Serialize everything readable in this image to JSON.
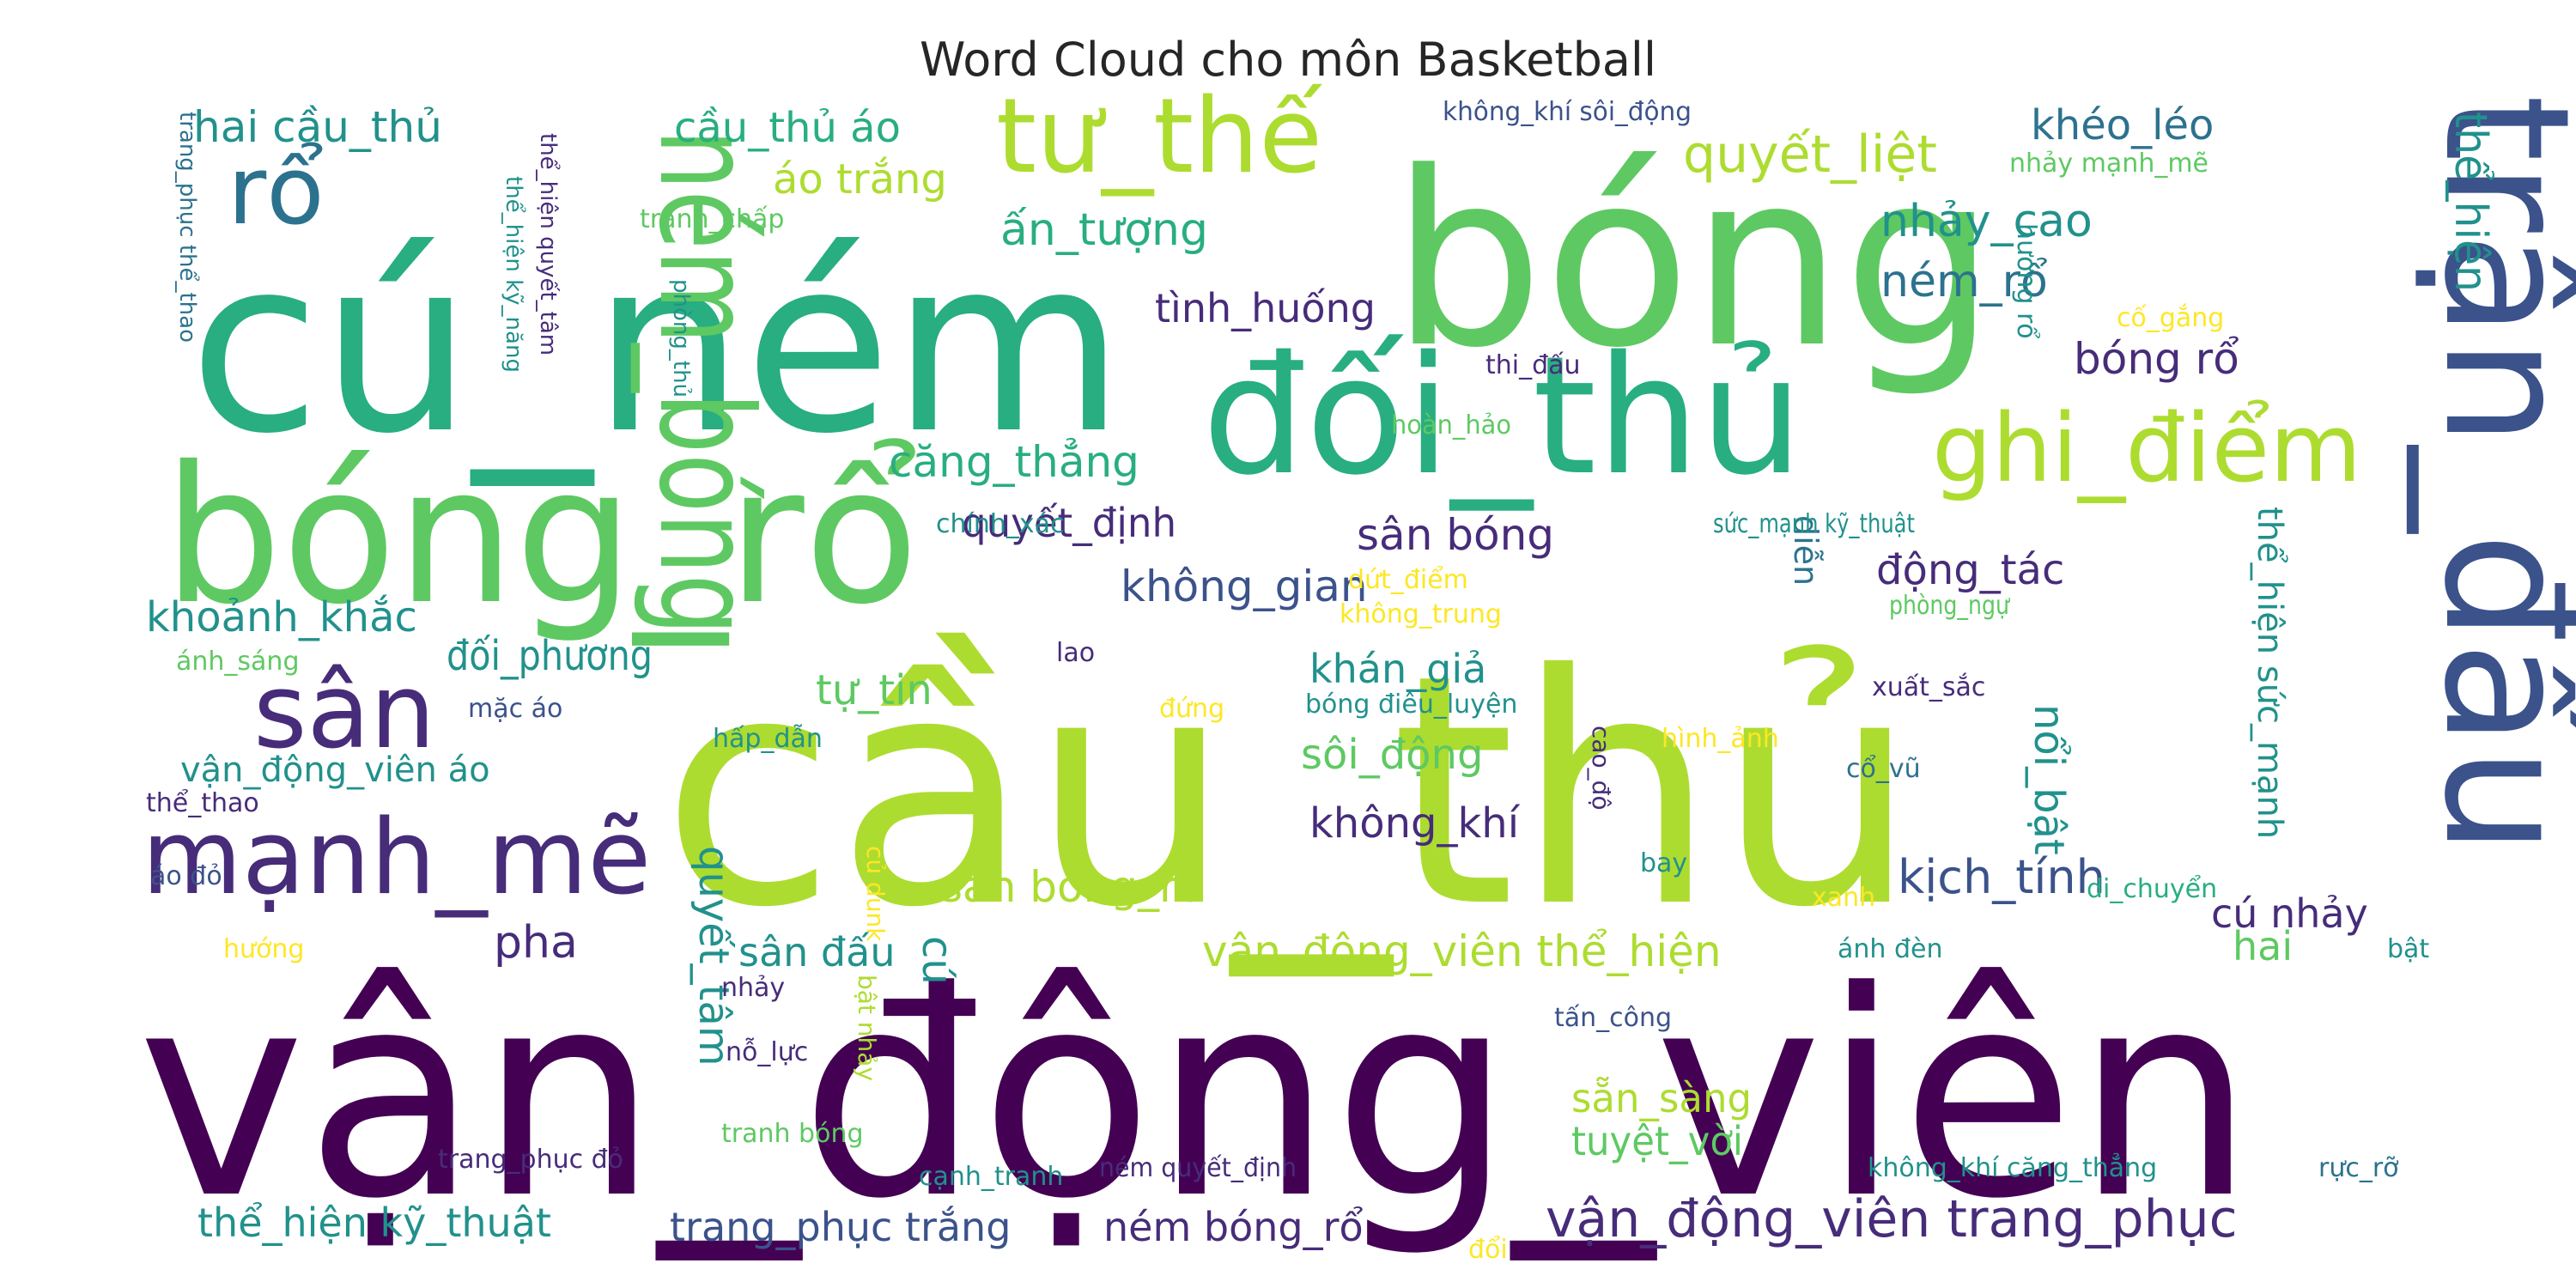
{
  "title": "Word Cloud cho môn Basketball",
  "palette": {
    "dark_purple": "#440154",
    "purple": "#472c7a",
    "indigo": "#3b528b",
    "blue": "#2c728e",
    "teal": "#21918c",
    "green": "#28ae80",
    "lime_green": "#5ec962",
    "yellow_green": "#addc30",
    "yellow": "#fde725"
  },
  "words": [
    "vận_động_viên",
    "cầu_thủ",
    "cú_ném",
    "bóng",
    "bóng_rổ",
    "trận_đấu",
    "đối_thủ",
    "ném_bóng",
    "tư_thế",
    "mạnh_mẽ",
    "ghi_điểm",
    "rổ",
    "sân",
    "quyết_liệt",
    "nhảy_cao",
    "ném_rổ",
    "khéo_léo",
    "ấn_tượng",
    "hai cầu_thủ",
    "cầu_thủ áo",
    "áo trắng",
    "tình_huống",
    "bóng rổ",
    "căng_thẳng",
    "thể_hiện",
    "quyết_định",
    "sân bóng",
    "không_gian",
    "động_tác",
    "khoảnh_khắc",
    "đối_phương",
    "khán_giả",
    "tự_tin",
    "sôi_động",
    "vận_động_viên áo",
    "không_khí",
    "kịch_tính",
    "sân bóng_rổ",
    "pha",
    "cú",
    "quyết_tâm",
    "sân đấu",
    "vận_động_viên thể_hiện",
    "cú nhảy",
    "hai",
    "sẵn_sàng",
    "tuyệt_vời",
    "thể_hiện kỹ_thuật",
    "trang_phục trắng",
    "ném bóng_rổ",
    "vận_động_viên trang_phục",
    "nổi_bật",
    "thể_hiện sức_mạnh",
    "diễn",
    "không_khí sôi_động",
    "nhảy mạnh_mẽ",
    "tranh_chấp",
    "thi_đấu",
    "cố_gắng",
    "hướng rổ",
    "hoàn_hảo",
    "chính_xác",
    "sức_mạnh kỹ_thuật",
    "dứt_điểm",
    "không_trung",
    "phòng_ngự",
    "ánh_sáng",
    "lao",
    "mặc áo",
    "đứng",
    "bóng điêu_luyện",
    "xuất_sắc",
    "hấp_dẫn",
    "hình_ảnh",
    "cổ_vũ",
    "cao_độ",
    "thể_thao",
    "củ dunk",
    "bay",
    "xanh",
    "di_chuyển",
    "áo đỏ",
    "hướng",
    "ánh đèn",
    "bật",
    "nhảy",
    "bật nhảy",
    "tấn_công",
    "nỗ_lực",
    "tranh bóng",
    "trang_phục đỏ",
    "cạnh_tranh",
    "ném quyết_định",
    "không_khí căng_thẳng",
    "rực_rỡ",
    "đổi",
    "trang_phục thể_thao",
    "thể_hiện kỹ_năng",
    "thể_hiện quyết_tâm",
    "phòng_thủ"
  ]
}
